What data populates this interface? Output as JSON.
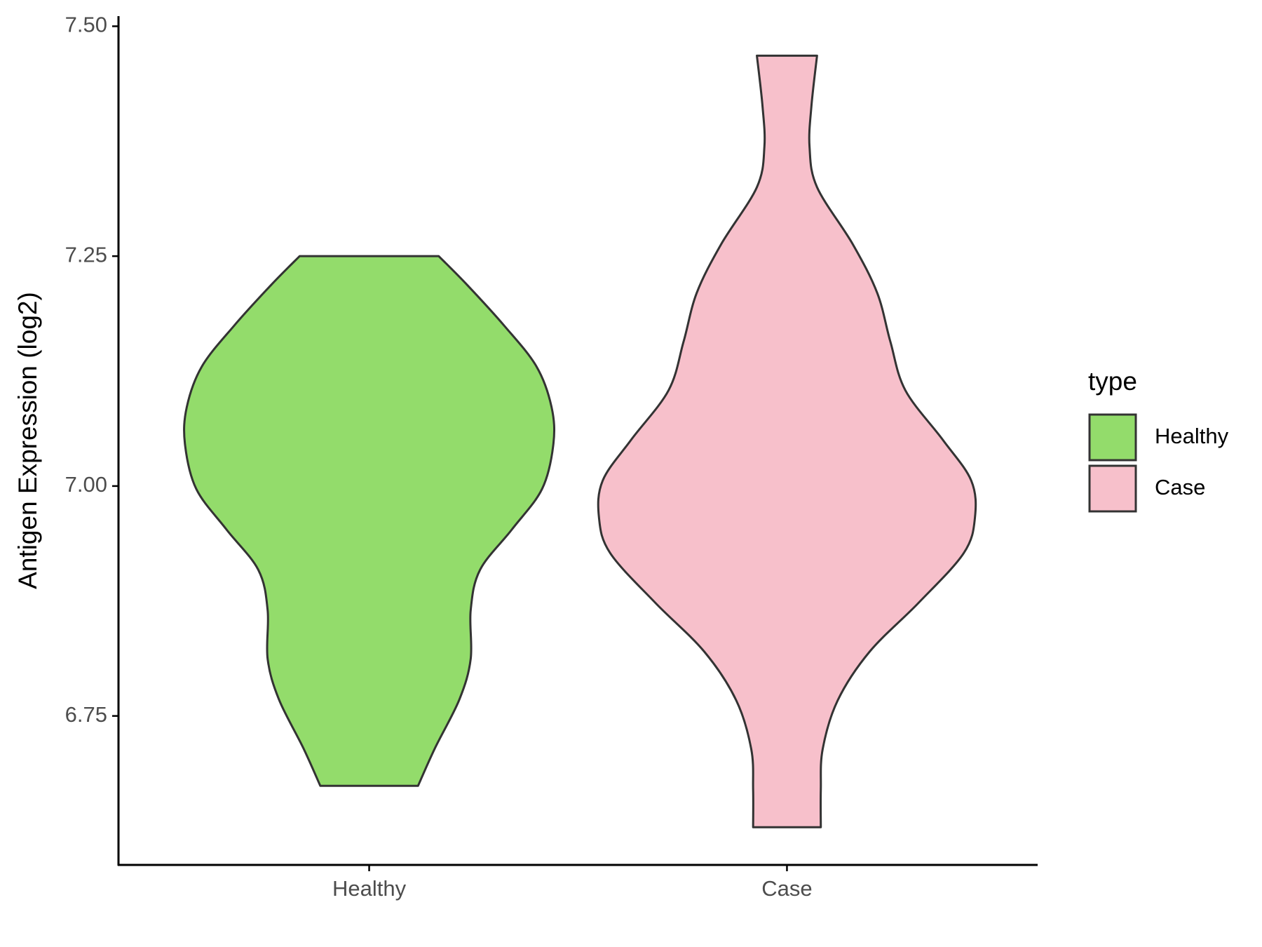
{
  "chart_data": {
    "type": "violin",
    "y_label": "Antigen Expression (log2)",
    "categories": [
      "Healthy",
      "Case"
    ],
    "legend_title": "type",
    "legend_position": "right",
    "ylim": [
      6.588,
      7.511
    ],
    "yticks": [
      {
        "value": 6.75,
        "label": "6.75"
      },
      {
        "value": 7.0,
        "label": "7.00"
      },
      {
        "value": 7.25,
        "label": "7.25"
      },
      {
        "value": 7.5,
        "label": "7.50"
      }
    ],
    "series": [
      {
        "name": "Healthy",
        "color": "#93dc6b",
        "y": [
          7.25,
          7.219,
          7.174,
          7.13,
          7.086,
          7.046,
          6.997,
          6.953,
          6.909,
          6.865,
          6.812,
          6.768,
          6.715,
          6.674
        ],
        "width": [
          0.37,
          0.52,
          0.72,
          0.89,
          0.97,
          0.98,
          0.92,
          0.76,
          0.59,
          0.54,
          0.54,
          0.48,
          0.35,
          0.26
        ]
      },
      {
        "name": "Case",
        "color": "#f7c0cb",
        "y": [
          7.468,
          7.413,
          7.369,
          7.325,
          7.263,
          7.21,
          7.157,
          7.104,
          7.05,
          7.006,
          6.966,
          6.927,
          6.873,
          6.82,
          6.767,
          6.714,
          6.67,
          6.629
        ],
        "width": [
          0.16,
          0.13,
          0.12,
          0.16,
          0.35,
          0.48,
          0.55,
          0.63,
          0.83,
          0.98,
          1.0,
          0.94,
          0.7,
          0.44,
          0.27,
          0.19,
          0.18,
          0.18
        ]
      }
    ]
  }
}
